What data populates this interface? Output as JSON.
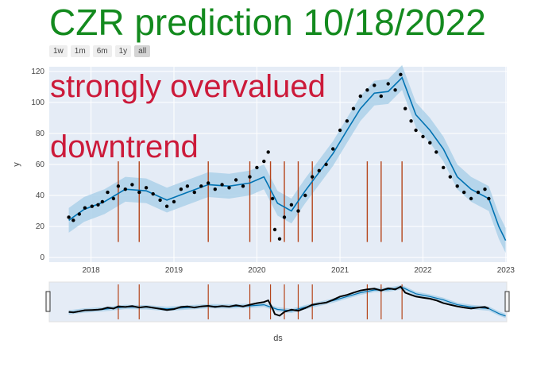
{
  "title": "CZR prediction 10/18/2022",
  "range_buttons": [
    {
      "label": "1w",
      "active": false
    },
    {
      "label": "1m",
      "active": false
    },
    {
      "label": "6m",
      "active": false
    },
    {
      "label": "1y",
      "active": false
    },
    {
      "label": "all",
      "active": true
    }
  ],
  "colors": {
    "title": "#138a1e",
    "annotation": "#cc1a3a",
    "plot_bg": "#e5ecf6",
    "forecast_line": "#0072b2",
    "uncertainty_band": "#a9cfe8",
    "observed_points": "#000000",
    "changepoints": "#b5451b"
  },
  "chart_data": {
    "type": "scatter",
    "xlabel": "ds",
    "ylabel": "y",
    "x_range": [
      "2017-07-01",
      "2023-01-05"
    ],
    "y_range": [
      -3,
      123
    ],
    "x_ticks": [
      "2018",
      "2019",
      "2020",
      "2021",
      "2022",
      "2023"
    ],
    "y_ticks": [
      0,
      20,
      40,
      60,
      80,
      100,
      120
    ],
    "grid": true,
    "annotations": [
      "strongly overvalued",
      "downtrend"
    ],
    "observed": {
      "x": [
        "2017-09-25",
        "2017-10-15",
        "2017-11-10",
        "2017-12-05",
        "2018-01-05",
        "2018-02-01",
        "2018-02-20",
        "2018-03-15",
        "2018-04-10",
        "2018-05-01",
        "2018-06-01",
        "2018-07-01",
        "2018-08-01",
        "2018-09-01",
        "2018-10-01",
        "2018-11-01",
        "2018-12-01",
        "2019-01-01",
        "2019-02-01",
        "2019-03-01",
        "2019-04-01",
        "2019-05-01",
        "2019-06-01",
        "2019-07-01",
        "2019-08-01",
        "2019-09-01",
        "2019-10-01",
        "2019-11-01",
        "2019-12-01",
        "2020-01-01",
        "2020-02-01",
        "2020-02-20",
        "2020-03-10",
        "2020-03-20",
        "2020-04-10",
        "2020-05-01",
        "2020-06-01",
        "2020-07-01",
        "2020-08-01",
        "2020-09-01",
        "2020-10-01",
        "2020-11-01",
        "2020-12-01",
        "2021-01-01",
        "2021-02-01",
        "2021-03-01",
        "2021-04-01",
        "2021-05-01",
        "2021-06-01",
        "2021-07-01",
        "2021-08-01",
        "2021-09-01",
        "2021-09-25",
        "2021-10-15",
        "2021-11-10",
        "2021-12-01",
        "2022-01-01",
        "2022-02-01",
        "2022-03-01",
        "2022-04-01",
        "2022-05-01",
        "2022-06-01",
        "2022-07-01",
        "2022-08-01",
        "2022-09-01",
        "2022-10-01",
        "2022-10-18"
      ],
      "y": [
        26,
        24,
        28,
        32,
        33,
        34,
        36,
        42,
        38,
        46,
        44,
        47,
        42,
        45,
        41,
        37,
        33,
        36,
        44,
        46,
        42,
        46,
        48,
        44,
        47,
        45,
        50,
        46,
        52,
        58,
        62,
        68,
        38,
        18,
        12,
        26,
        34,
        30,
        40,
        52,
        56,
        60,
        70,
        82,
        88,
        96,
        104,
        108,
        111,
        104,
        112,
        108,
        118,
        96,
        88,
        82,
        78,
        74,
        68,
        58,
        52,
        46,
        42,
        38,
        42,
        44,
        38
      ]
    },
    "forecast": {
      "x": [
        "2017-09-25",
        "2017-12-01",
        "2018-03-01",
        "2018-06-01",
        "2018-09-01",
        "2018-12-01",
        "2019-03-01",
        "2019-06-01",
        "2019-09-01",
        "2019-12-01",
        "2020-02-01",
        "2020-04-01",
        "2020-06-01",
        "2020-08-01",
        "2020-10-01",
        "2020-12-01",
        "2021-02-01",
        "2021-04-01",
        "2021-06-01",
        "2021-08-01",
        "2021-10-01",
        "2021-12-01",
        "2022-02-01",
        "2022-04-01",
        "2022-06-01",
        "2022-08-01",
        "2022-10-18",
        "2022-12-01",
        "2022-12-31"
      ],
      "y": [
        24,
        31,
        36,
        44,
        43,
        37,
        42,
        47,
        46,
        48,
        52,
        35,
        30,
        43,
        55,
        67,
        82,
        96,
        106,
        107,
        116,
        92,
        82,
        70,
        52,
        44,
        38,
        20,
        11
      ]
    },
    "band_halfwidth": 8,
    "changepoints": [
      "2018-05-01",
      "2018-08-01",
      "2019-06-01",
      "2019-12-01",
      "2020-03-01",
      "2020-05-01",
      "2020-07-01",
      "2020-09-01",
      "2021-05-01",
      "2021-07-01",
      "2021-10-01"
    ],
    "changepoint_line_range": [
      10,
      62
    ]
  }
}
